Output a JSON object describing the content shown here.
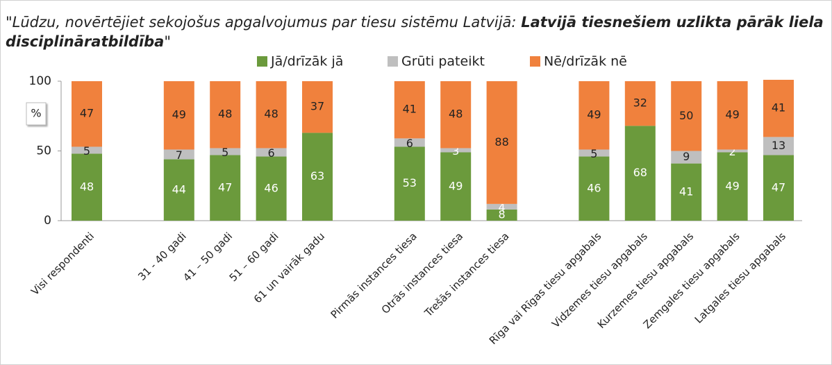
{
  "chart_data": {
    "type": "stacked_bar",
    "title": [
      "\"Lūdzu, novērtējiet sekojošus apgalvojumus par tiesu sistēmu Latvijā: ",
      "Latvijā tiesnešiem uzlikta pārāk liela disciplināratbildība",
      "\""
    ],
    "y_unit": "%",
    "categories": [
      "Visi respondenti",
      null,
      "31 - 40 gadi",
      "41 – 50 gadi",
      "51 – 60 gadi",
      "61 un vairāk gadu",
      null,
      "Pirmās instances tiesa",
      "Otrās instances tiesa",
      "Trešās instances tiesa",
      null,
      "Rīga vai Rīgas tiesu apgabals",
      "Vidzemes tiesu apgabals",
      "Kurzemes tiesu apgabals",
      "Zemgales tiesu apgabals",
      "Latgales tiesu apgabals"
    ],
    "series": [
      {
        "name": "Jā/drīzāk jā",
        "color": "#6b9a3c",
        "values": [
          48,
          null,
          44,
          47,
          46,
          63,
          null,
          53,
          49,
          8,
          null,
          46,
          68,
          41,
          49,
          47
        ]
      },
      {
        "name": "Grūti pateikt",
        "color": "#bfbfbf",
        "values": [
          5,
          null,
          7,
          5,
          6,
          0,
          null,
          6,
          3,
          4,
          null,
          5,
          0,
          9,
          2,
          13
        ]
      },
      {
        "name": "Nē/drīzāk nē",
        "color": "#f0813d",
        "values": [
          47,
          null,
          49,
          48,
          48,
          37,
          null,
          41,
          48,
          88,
          null,
          49,
          32,
          50,
          49,
          41
        ]
      }
    ],
    "ylim": [
      0,
      100
    ],
    "yticks": [
      0,
      50,
      100
    ],
    "grid": false,
    "legend": "top"
  }
}
